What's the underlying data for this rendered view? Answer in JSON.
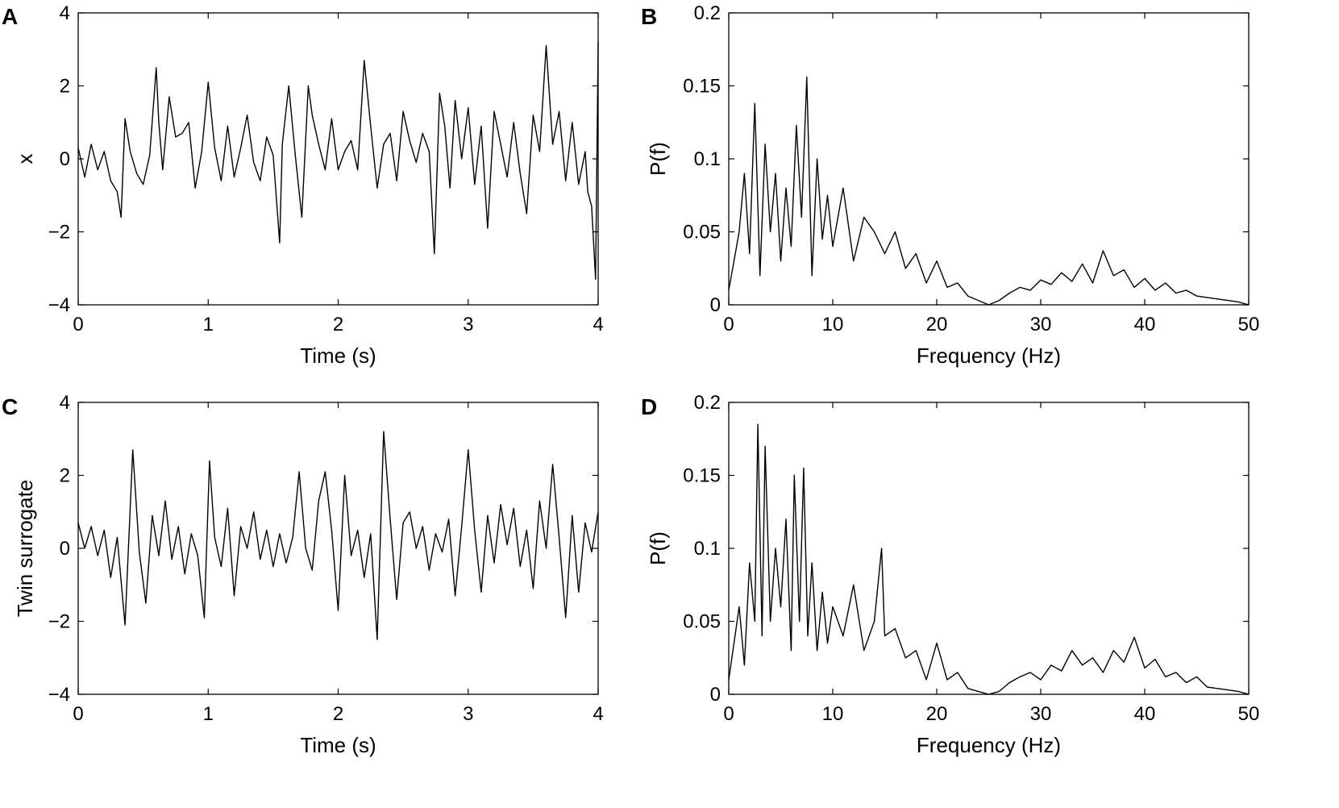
{
  "figure": {
    "background": "#ffffff",
    "line_color": "#000000"
  },
  "chart_data": [
    {
      "panel": "A",
      "type": "line",
      "title": "",
      "xlabel": "Time (s)",
      "ylabel": "x",
      "xlim": [
        0,
        4
      ],
      "ylim": [
        -4,
        4
      ],
      "xticks": [
        0,
        1,
        2,
        3,
        4
      ],
      "yticks": [
        -4,
        -2,
        0,
        2,
        4
      ],
      "xtick_labels": [
        "0",
        "1",
        "2",
        "3",
        "4"
      ],
      "ytick_labels": [
        "−4",
        "−2",
        "0",
        "2",
        "4"
      ],
      "x": [
        0,
        0.05,
        0.1,
        0.15,
        0.2,
        0.25,
        0.3,
        0.33,
        0.36,
        0.4,
        0.45,
        0.5,
        0.55,
        0.6,
        0.62,
        0.65,
        0.7,
        0.75,
        0.8,
        0.85,
        0.9,
        0.95,
        1.0,
        1.05,
        1.1,
        1.15,
        1.2,
        1.25,
        1.3,
        1.35,
        1.4,
        1.45,
        1.5,
        1.55,
        1.57,
        1.62,
        1.67,
        1.72,
        1.77,
        1.8,
        1.85,
        1.9,
        1.95,
        2.0,
        2.05,
        2.1,
        2.15,
        2.2,
        2.25,
        2.3,
        2.35,
        2.4,
        2.45,
        2.5,
        2.55,
        2.6,
        2.65,
        2.7,
        2.74,
        2.78,
        2.82,
        2.86,
        2.9,
        2.95,
        3.0,
        3.05,
        3.1,
        3.15,
        3.2,
        3.25,
        3.3,
        3.35,
        3.4,
        3.45,
        3.5,
        3.55,
        3.6,
        3.65,
        3.7,
        3.75,
        3.8,
        3.85,
        3.9,
        3.92,
        3.95,
        3.98,
        4.0
      ],
      "y": [
        0.3,
        -0.5,
        0.4,
        -0.3,
        0.2,
        -0.6,
        -0.9,
        -1.6,
        1.1,
        0.2,
        -0.4,
        -0.7,
        0.1,
        2.5,
        1.0,
        -0.3,
        1.7,
        0.6,
        0.7,
        1.0,
        -0.8,
        0.2,
        2.1,
        0.3,
        -0.6,
        0.9,
        -0.5,
        0.3,
        1.2,
        -0.1,
        -0.6,
        0.6,
        0.1,
        -2.3,
        0.4,
        2.0,
        0.1,
        -1.6,
        2.0,
        1.2,
        0.4,
        -0.3,
        1.1,
        -0.3,
        0.2,
        0.5,
        -0.3,
        2.7,
        0.9,
        -0.8,
        0.4,
        0.7,
        -0.6,
        1.3,
        0.5,
        -0.1,
        0.7,
        0.2,
        -2.6,
        1.8,
        0.9,
        -0.8,
        1.6,
        0.0,
        1.4,
        -0.7,
        0.9,
        -1.9,
        1.3,
        0.4,
        -0.5,
        1.0,
        -0.4,
        -1.5,
        1.2,
        0.2,
        3.1,
        0.4,
        1.3,
        -0.6,
        1.0,
        -0.7,
        0.2,
        -0.9,
        -1.3,
        -3.3,
        3.2
      ]
    },
    {
      "panel": "B",
      "type": "line",
      "title": "",
      "xlabel": "Frequency (Hz)",
      "ylabel": "P(f)",
      "xlim": [
        0,
        50
      ],
      "ylim": [
        0,
        0.2
      ],
      "xticks": [
        0,
        10,
        20,
        30,
        40,
        50
      ],
      "yticks": [
        0,
        0.05,
        0.1,
        0.15,
        0.2
      ],
      "xtick_labels": [
        "0",
        "10",
        "20",
        "30",
        "40",
        "50"
      ],
      "ytick_labels": [
        "0",
        "0.05",
        "0.1",
        "0.15",
        "0.2"
      ],
      "x": [
        0,
        0.5,
        1,
        1.5,
        2,
        2.5,
        3,
        3.5,
        4,
        4.5,
        5,
        5.5,
        6,
        6.5,
        7,
        7.5,
        8,
        8.5,
        9,
        9.5,
        10,
        11,
        12,
        13,
        14,
        15,
        16,
        17,
        18,
        19,
        20,
        21,
        22,
        23,
        24,
        25,
        26,
        27,
        28,
        29,
        30,
        31,
        32,
        33,
        34,
        35,
        36,
        37,
        38,
        39,
        40,
        41,
        42,
        43,
        44,
        45,
        46,
        47,
        48,
        49,
        50
      ],
      "y": [
        0.01,
        0.03,
        0.05,
        0.09,
        0.035,
        0.138,
        0.02,
        0.11,
        0.05,
        0.09,
        0.03,
        0.08,
        0.04,
        0.123,
        0.06,
        0.156,
        0.02,
        0.1,
        0.045,
        0.075,
        0.04,
        0.08,
        0.03,
        0.06,
        0.05,
        0.035,
        0.05,
        0.025,
        0.035,
        0.015,
        0.03,
        0.012,
        0.015,
        0.006,
        0.003,
        0.0,
        0.003,
        0.008,
        0.012,
        0.01,
        0.017,
        0.014,
        0.022,
        0.016,
        0.028,
        0.015,
        0.037,
        0.02,
        0.024,
        0.012,
        0.018,
        0.01,
        0.015,
        0.008,
        0.01,
        0.006,
        0.005,
        0.004,
        0.003,
        0.002,
        0.0
      ]
    },
    {
      "panel": "C",
      "type": "line",
      "title": "",
      "xlabel": "Time (s)",
      "ylabel": "Twin surrogate",
      "xlim": [
        0,
        4
      ],
      "ylim": [
        -4,
        4
      ],
      "xticks": [
        0,
        1,
        2,
        3,
        4
      ],
      "yticks": [
        -4,
        -2,
        0,
        2,
        4
      ],
      "xtick_labels": [
        "0",
        "1",
        "2",
        "3",
        "4"
      ],
      "ytick_labels": [
        "−4",
        "−2",
        "0",
        "2",
        "4"
      ],
      "x": [
        0,
        0.05,
        0.1,
        0.15,
        0.2,
        0.25,
        0.3,
        0.36,
        0.42,
        0.47,
        0.52,
        0.57,
        0.62,
        0.67,
        0.72,
        0.77,
        0.82,
        0.87,
        0.92,
        0.97,
        1.01,
        1.05,
        1.1,
        1.15,
        1.2,
        1.25,
        1.3,
        1.35,
        1.4,
        1.45,
        1.5,
        1.55,
        1.6,
        1.65,
        1.7,
        1.75,
        1.8,
        1.85,
        1.9,
        1.95,
        2.0,
        2.05,
        2.1,
        2.15,
        2.2,
        2.25,
        2.3,
        2.35,
        2.4,
        2.45,
        2.5,
        2.55,
        2.6,
        2.65,
        2.7,
        2.75,
        2.8,
        2.85,
        2.9,
        2.95,
        3.0,
        3.05,
        3.1,
        3.15,
        3.2,
        3.25,
        3.3,
        3.35,
        3.4,
        3.45,
        3.5,
        3.55,
        3.6,
        3.65,
        3.7,
        3.75,
        3.8,
        3.85,
        3.9,
        3.95,
        4.0
      ],
      "y": [
        0.7,
        0.0,
        0.6,
        -0.2,
        0.5,
        -0.8,
        0.3,
        -2.1,
        2.7,
        -0.1,
        -1.5,
        0.9,
        -0.2,
        1.3,
        -0.3,
        0.6,
        -0.7,
        0.4,
        -0.2,
        -1.9,
        2.4,
        0.3,
        -0.5,
        1.1,
        -1.3,
        0.6,
        0.0,
        1.0,
        -0.3,
        0.5,
        -0.5,
        0.4,
        -0.4,
        0.3,
        2.1,
        0.0,
        -0.6,
        1.3,
        2.1,
        0.5,
        -1.7,
        2.0,
        -0.2,
        0.5,
        -0.8,
        0.4,
        -2.5,
        3.2,
        0.8,
        -1.4,
        0.7,
        1.0,
        0.0,
        0.6,
        -0.6,
        0.4,
        -0.1,
        0.8,
        -1.3,
        0.6,
        2.7,
        0.5,
        -1.2,
        0.9,
        -0.4,
        1.2,
        0.1,
        1.1,
        -0.5,
        0.5,
        -1.1,
        1.3,
        0.0,
        2.3,
        0.3,
        -1.9,
        0.9,
        -1.2,
        0.7,
        -0.1,
        1.0
      ]
    },
    {
      "panel": "D",
      "type": "line",
      "title": "",
      "xlabel": "Frequency (Hz)",
      "ylabel": "P(f)",
      "xlim": [
        0,
        50
      ],
      "ylim": [
        0,
        0.2
      ],
      "xticks": [
        0,
        10,
        20,
        30,
        40,
        50
      ],
      "yticks": [
        0,
        0.05,
        0.1,
        0.15,
        0.2
      ],
      "xtick_labels": [
        "0",
        "10",
        "20",
        "30",
        "40",
        "50"
      ],
      "ytick_labels": [
        "0",
        "0.05",
        "0.1",
        "0.15",
        "0.2"
      ],
      "x": [
        0,
        0.5,
        1,
        1.5,
        2,
        2.5,
        2.8,
        3.2,
        3.5,
        4,
        4.5,
        5,
        5.5,
        6,
        6.3,
        6.8,
        7.2,
        7.6,
        8,
        8.5,
        9,
        9.5,
        10,
        11,
        12,
        13,
        14,
        14.7,
        15,
        16,
        17,
        18,
        19,
        20,
        21,
        22,
        23,
        24,
        25,
        26,
        27,
        28,
        29,
        30,
        31,
        32,
        33,
        34,
        35,
        36,
        37,
        38,
        39,
        40,
        41,
        42,
        43,
        44,
        45,
        46,
        47,
        48,
        49,
        50
      ],
      "y": [
        0.01,
        0.035,
        0.06,
        0.02,
        0.09,
        0.05,
        0.185,
        0.04,
        0.17,
        0.05,
        0.1,
        0.06,
        0.12,
        0.03,
        0.15,
        0.05,
        0.155,
        0.04,
        0.09,
        0.03,
        0.07,
        0.035,
        0.06,
        0.04,
        0.075,
        0.03,
        0.05,
        0.1,
        0.04,
        0.045,
        0.025,
        0.03,
        0.01,
        0.035,
        0.01,
        0.015,
        0.004,
        0.002,
        0.0,
        0.002,
        0.008,
        0.012,
        0.015,
        0.01,
        0.02,
        0.016,
        0.03,
        0.02,
        0.025,
        0.015,
        0.03,
        0.022,
        0.039,
        0.018,
        0.024,
        0.012,
        0.015,
        0.008,
        0.012,
        0.005,
        0.004,
        0.003,
        0.002,
        0.0
      ]
    }
  ]
}
